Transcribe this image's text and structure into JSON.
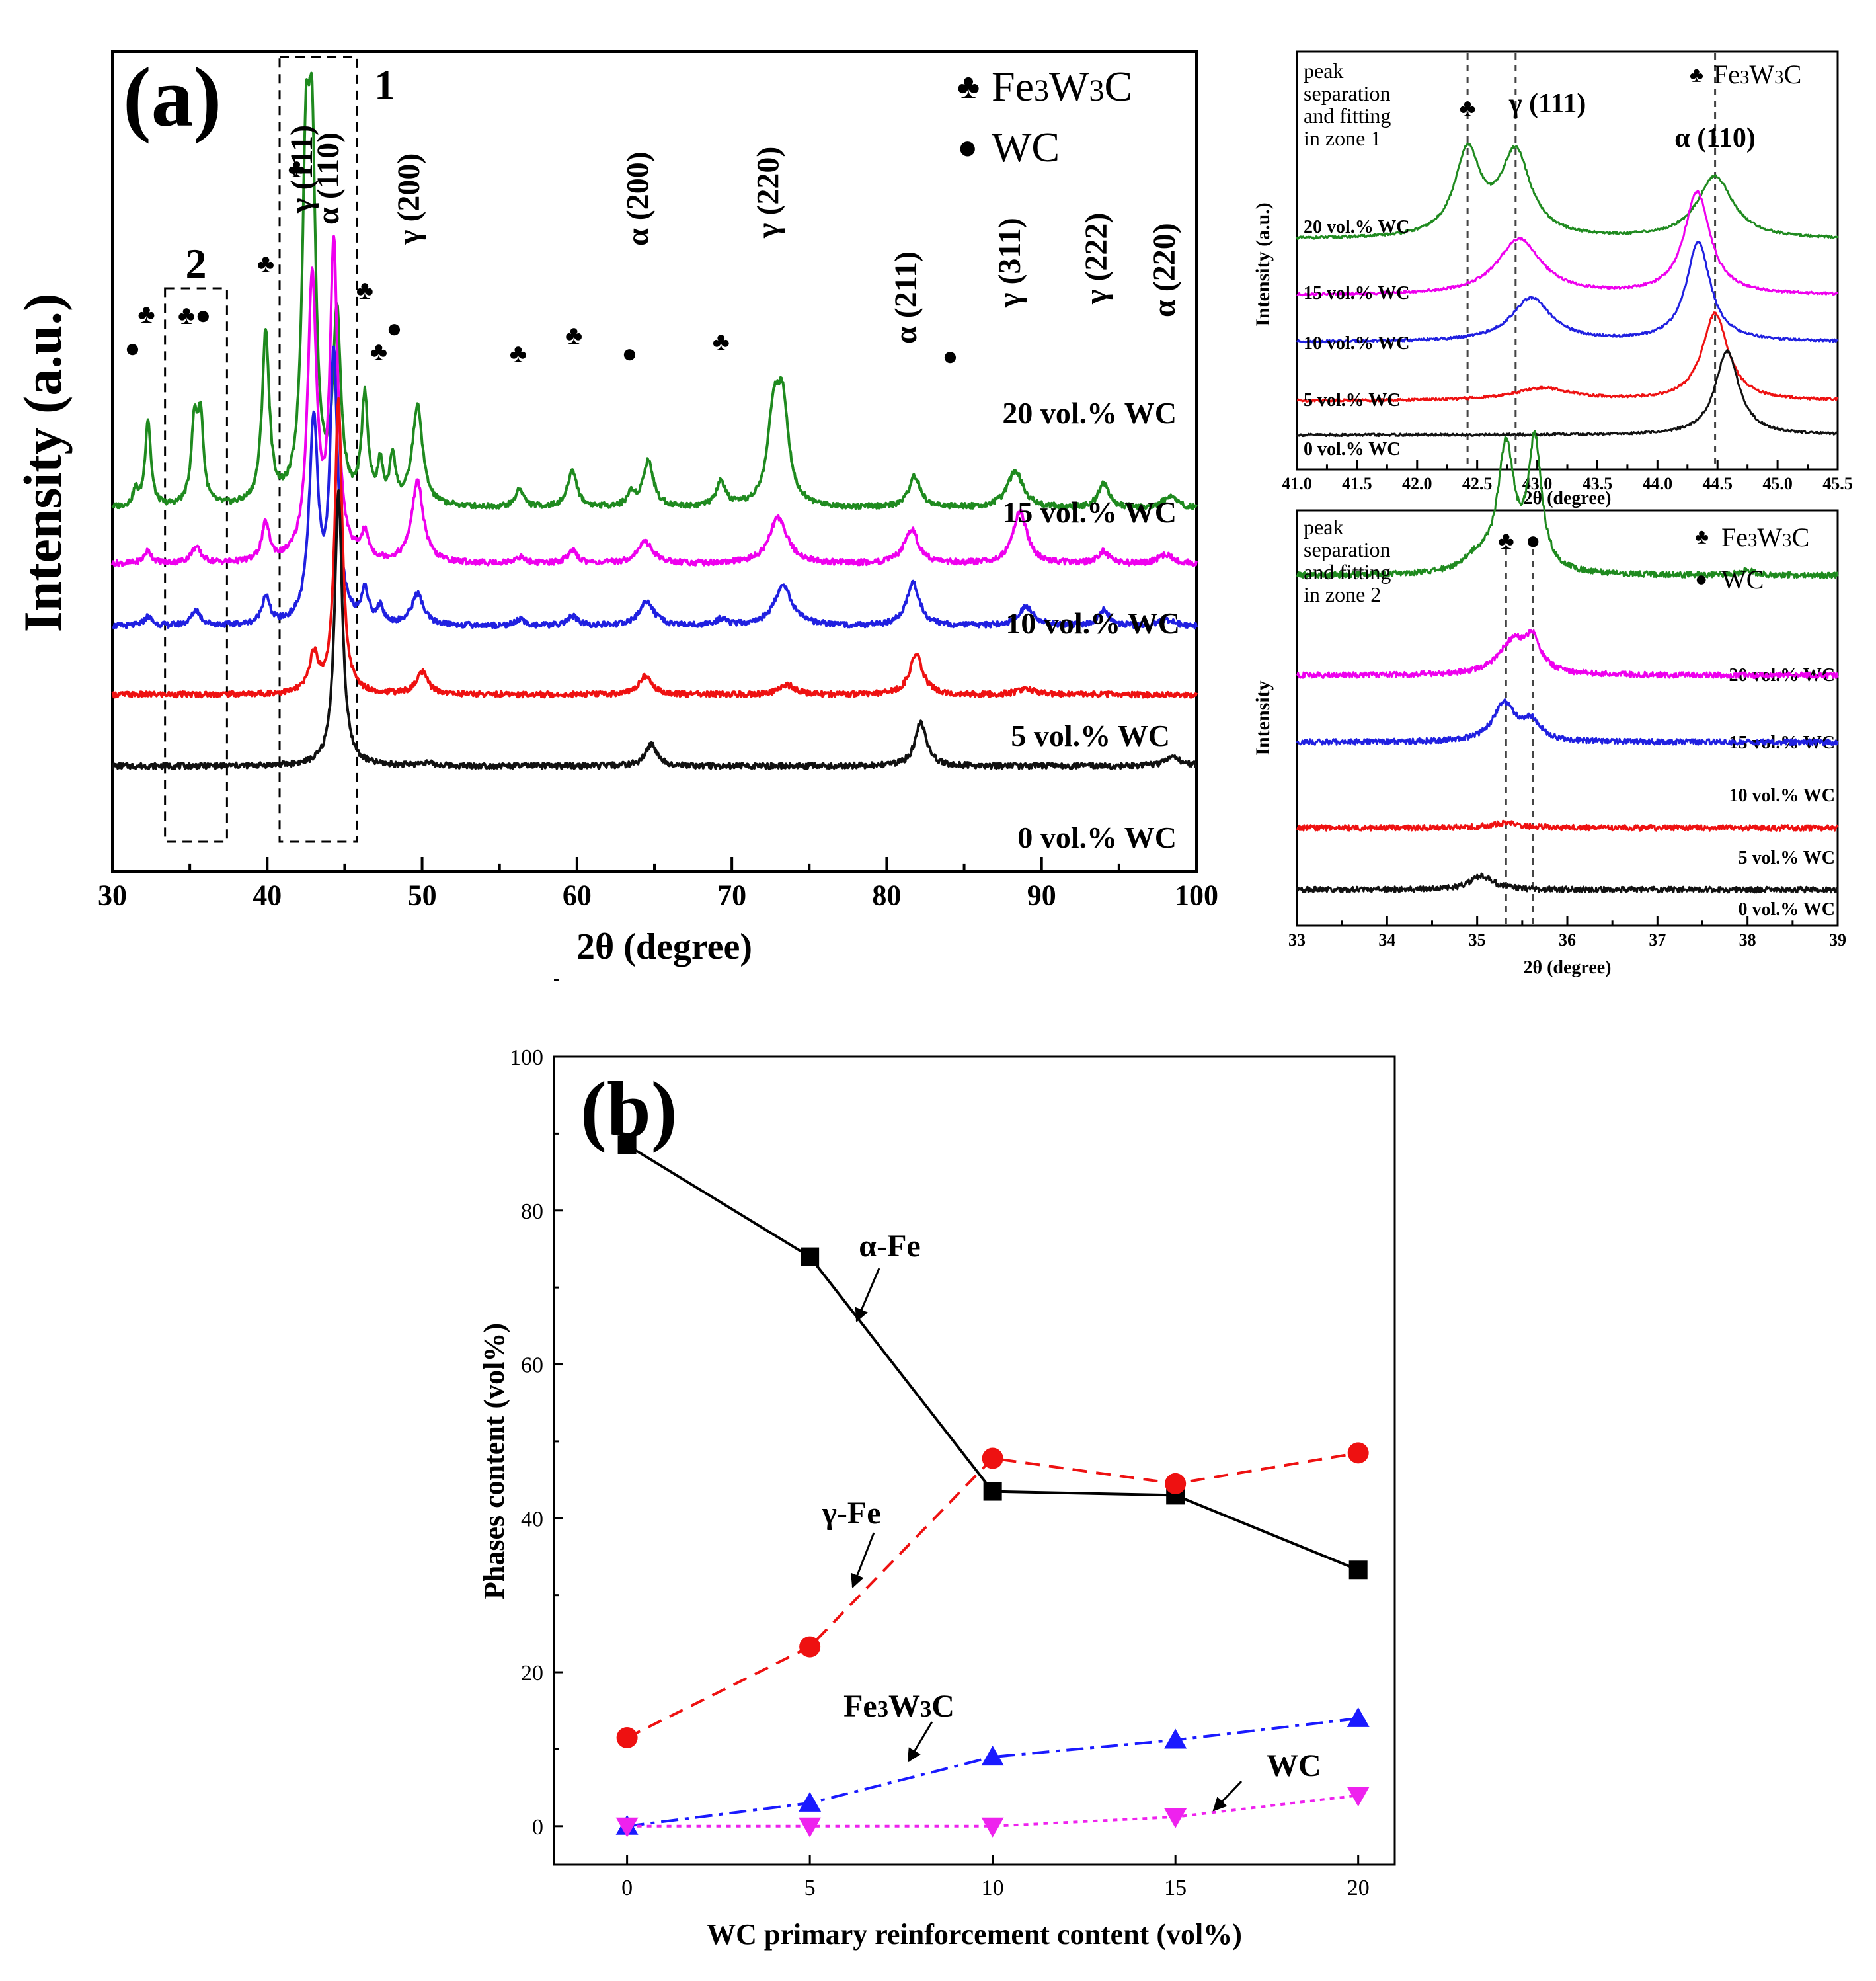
{
  "chart_data": [
    {
      "id": "a",
      "type": "line",
      "panel_label": "(a)",
      "xlabel": "2θ (degree)",
      "ylabel": "Intensity (a.u.)",
      "xlim": [
        30,
        100
      ],
      "xticks": [
        "30",
        "40",
        "50",
        "60",
        "70",
        "80",
        "90",
        "100"
      ],
      "legend": [
        {
          "symbol": "♣",
          "label": "Fe3W3C"
        },
        {
          "symbol": "●",
          "label": "WC"
        }
      ],
      "zones": [
        {
          "label": "1",
          "x_range": [
            40.8,
            45.8
          ]
        },
        {
          "label": "2",
          "x_range": [
            33.4,
            37.4
          ]
        }
      ],
      "series": [
        {
          "name": "20 vol.% WC",
          "color": "#1f8a1f",
          "baseline": 0.62,
          "peaks": [
            [
              31.5,
              0.05,
              0.2
            ],
            [
              32.3,
              0.28,
              0.22
            ],
            [
              35.3,
              0.26,
              0.25
            ],
            [
              35.7,
              0.26,
              0.22
            ],
            [
              39.9,
              0.55,
              0.28
            ],
            [
              42.5,
              1.0,
              0.3
            ],
            [
              42.9,
              0.98,
              0.28
            ],
            [
              44.5,
              0.6,
              0.3
            ],
            [
              46.3,
              0.34,
              0.25
            ],
            [
              47.3,
              0.12,
              0.2
            ],
            [
              48.1,
              0.15,
              0.22
            ],
            [
              49.7,
              0.32,
              0.4
            ],
            [
              56.3,
              0.06,
              0.3
            ],
            [
              59.7,
              0.12,
              0.35
            ],
            [
              63.5,
              0.04,
              0.3
            ],
            [
              64.6,
              0.15,
              0.4
            ],
            [
              69.3,
              0.08,
              0.35
            ],
            [
              72.7,
              0.28,
              0.45
            ],
            [
              73.3,
              0.3,
              0.45
            ],
            [
              81.8,
              0.1,
              0.45
            ],
            [
              88.3,
              0.12,
              0.6
            ],
            [
              94.0,
              0.08,
              0.4
            ],
            [
              98.3,
              0.04,
              0.5
            ]
          ]
        },
        {
          "name": "15 vol.% WC",
          "color": "#ee00ee",
          "baseline": 0.44,
          "peaks": [
            [
              32.3,
              0.04,
              0.3
            ],
            [
              35.4,
              0.05,
              0.4
            ],
            [
              39.9,
              0.12,
              0.3
            ],
            [
              42.9,
              0.9,
              0.35
            ],
            [
              44.3,
              1.0,
              0.3
            ],
            [
              46.3,
              0.08,
              0.3
            ],
            [
              49.7,
              0.26,
              0.45
            ],
            [
              56.3,
              0.02,
              0.4
            ],
            [
              59.7,
              0.04,
              0.4
            ],
            [
              64.4,
              0.07,
              0.6
            ],
            [
              73.0,
              0.15,
              0.7
            ],
            [
              81.6,
              0.11,
              0.55
            ],
            [
              88.6,
              0.17,
              0.55
            ],
            [
              94.0,
              0.04,
              0.4
            ],
            [
              98.0,
              0.03,
              0.6
            ]
          ]
        },
        {
          "name": "10 vol.% WC",
          "color": "#2020e0",
          "baseline": 0.24,
          "peaks": [
            [
              32.3,
              0.03,
              0.3
            ],
            [
              35.4,
              0.05,
              0.35
            ],
            [
              39.9,
              0.09,
              0.3
            ],
            [
              43.0,
              0.64,
              0.35
            ],
            [
              44.3,
              0.86,
              0.3
            ],
            [
              46.3,
              0.1,
              0.3
            ],
            [
              47.3,
              0.05,
              0.25
            ],
            [
              49.7,
              0.1,
              0.45
            ],
            [
              56.3,
              0.02,
              0.35
            ],
            [
              59.7,
              0.03,
              0.4
            ],
            [
              64.5,
              0.08,
              0.55
            ],
            [
              69.3,
              0.02,
              0.4
            ],
            [
              73.3,
              0.13,
              0.7
            ],
            [
              81.7,
              0.14,
              0.5
            ],
            [
              89.0,
              0.06,
              0.6
            ],
            [
              94.0,
              0.05,
              0.45
            ],
            [
              98.0,
              0.02,
              0.6
            ]
          ]
        },
        {
          "name": "5 vol.% WC",
          "color": "#ee1111",
          "baseline": 0.02,
          "peaks": [
            [
              43.0,
              0.12,
              0.35
            ],
            [
              44.6,
              0.95,
              0.28
            ],
            [
              50.0,
              0.07,
              0.45
            ],
            [
              64.4,
              0.06,
              0.5
            ],
            [
              73.6,
              0.03,
              0.6
            ],
            [
              81.9,
              0.13,
              0.5
            ],
            [
              89.0,
              0.02,
              0.6
            ]
          ]
        },
        {
          "name": "0 vol.% WC",
          "color": "#111111",
          "baseline": -0.21,
          "peaks": [
            [
              44.6,
              0.88,
              0.3
            ],
            [
              50.2,
              0.01,
              0.5
            ],
            [
              64.8,
              0.07,
              0.45
            ],
            [
              82.2,
              0.14,
              0.45
            ],
            [
              98.5,
              0.03,
              0.6
            ]
          ]
        }
      ],
      "annotations": [
        {
          "text": "●",
          "x": 31.3
        },
        {
          "text": "♣",
          "x": 32.2
        },
        {
          "text": "♣●",
          "x": 35.3
        },
        {
          "text": "♣",
          "x": 39.9
        },
        {
          "text": "♣",
          "x": 41.9
        },
        {
          "text": "γ (111)",
          "x": 42.9
        },
        {
          "text": "α (110)",
          "x": 44.6
        },
        {
          "text": "♣",
          "x": 46.3
        },
        {
          "text": "♣",
          "x": 47.2
        },
        {
          "text": "●",
          "x": 48.2
        },
        {
          "text": "γ (200)",
          "x": 49.8
        },
        {
          "text": "♣",
          "x": 56.2
        },
        {
          "text": "♣",
          "x": 59.8
        },
        {
          "text": "●",
          "x": 63.4
        },
        {
          "text": "α (200)",
          "x": 64.6
        },
        {
          "text": "♣",
          "x": 69.3
        },
        {
          "text": "γ (220)",
          "x": 73.0
        },
        {
          "text": "α (211)",
          "x": 81.9
        },
        {
          "text": "●",
          "x": 84.1
        },
        {
          "text": "γ (311)",
          "x": 88.6
        },
        {
          "text": "γ (222)",
          "x": 94.2
        },
        {
          "text": "α (220)",
          "x": 98.6
        }
      ]
    },
    {
      "id": "inset1",
      "type": "line",
      "title": "peak separation and fitting in zone 1",
      "xlabel": "2θ (degree)",
      "ylabel": "Intensity (a.u.)",
      "xlim": [
        41.0,
        45.5
      ],
      "xticks": [
        "41.0",
        "41.5",
        "42.0",
        "42.5",
        "43.0",
        "43.5",
        "44.0",
        "44.5",
        "45.0",
        "45.5"
      ],
      "legend": [
        {
          "symbol": "♣",
          "label": "Fe3W3C"
        }
      ],
      "dashed_lines_x": [
        42.42,
        42.82,
        44.48
      ],
      "annotations": [
        {
          "text": "♣",
          "x": 42.42
        },
        {
          "text": "γ (111)",
          "x": 42.82
        },
        {
          "text": "α (110)",
          "x": 44.48
        }
      ],
      "series": [
        {
          "name": "20 vol.% WC",
          "color": "#1f8a1f",
          "baseline": 0.63,
          "peaks": [
            [
              42.42,
              0.27,
              0.13
            ],
            [
              42.82,
              0.27,
              0.15
            ],
            [
              44.48,
              0.2,
              0.18
            ]
          ]
        },
        {
          "name": "15 vol.% WC",
          "color": "#ee00ee",
          "baseline": 0.45,
          "peaks": [
            [
              42.85,
              0.18,
              0.22
            ],
            [
              44.33,
              0.33,
              0.13
            ]
          ]
        },
        {
          "name": "10 vol.% WC",
          "color": "#2020e0",
          "baseline": 0.3,
          "peaks": [
            [
              42.95,
              0.14,
              0.2
            ],
            [
              44.34,
              0.32,
              0.12
            ]
          ]
        },
        {
          "name": "5 vol.% WC",
          "color": "#ee1111",
          "baseline": 0.11,
          "peaks": [
            [
              43.05,
              0.04,
              0.3
            ],
            [
              44.48,
              0.28,
              0.13
            ]
          ]
        },
        {
          "name": "0 vol.% WC",
          "color": "#111111",
          "baseline": 0.0,
          "peaks": [
            [
              44.58,
              0.27,
              0.12
            ]
          ]
        }
      ]
    },
    {
      "id": "inset2",
      "type": "line",
      "title": "peak separation and fitting in zone 2",
      "xlabel": "2θ (degree)",
      "ylabel": "Intensity",
      "xlim": [
        33,
        39
      ],
      "xticks": [
        "33",
        "34",
        "35",
        "36",
        "37",
        "38",
        "39"
      ],
      "legend": [
        {
          "symbol": "♣",
          "label": "Fe3W3C"
        },
        {
          "symbol": "●",
          "label": "WC"
        }
      ],
      "dashed_lines_x": [
        35.32,
        35.62
      ],
      "annotations": [
        {
          "text": "♣",
          "x": 35.32
        },
        {
          "text": "●",
          "x": 35.62
        }
      ],
      "series": [
        {
          "name": "20 vol.% WC",
          "color": "#1f8a1f",
          "baseline": 0.68,
          "peaks": [
            [
              35.32,
              0.26,
              0.11
            ],
            [
              35.64,
              0.27,
              0.09
            ],
            [
              35.0,
              0.03,
              0.2
            ],
            [
              38.0,
              0.01,
              0.1
            ]
          ]
        },
        {
          "name": "15 vol.% WC",
          "color": "#ee00ee",
          "baseline": 0.47,
          "peaks": [
            [
              35.4,
              0.07,
              0.2
            ],
            [
              35.62,
              0.06,
              0.1
            ]
          ]
        },
        {
          "name": "10 vol.% WC",
          "color": "#2020e0",
          "baseline": 0.33,
          "peaks": [
            [
              35.3,
              0.08,
              0.15
            ],
            [
              35.6,
              0.04,
              0.12
            ]
          ]
        },
        {
          "name": "5 vol.% WC",
          "color": "#ee1111",
          "baseline": 0.15,
          "peaks": [
            [
              35.3,
              0.01,
              0.2
            ]
          ]
        },
        {
          "name": "0 vol.% WC",
          "color": "#111111",
          "baseline": 0.02,
          "peaks": [
            [
              35.05,
              0.03,
              0.15
            ]
          ]
        }
      ]
    },
    {
      "id": "b",
      "type": "line",
      "panel_label": "(b)",
      "xlabel": "WC primary reinforcement content (vol%)",
      "ylabel": "Phases content (vol%)",
      "xlim": [
        -2,
        21
      ],
      "ylim": [
        -5,
        100
      ],
      "x": [
        0,
        5,
        10,
        15,
        20
      ],
      "xticks": [
        "0",
        "5",
        "10",
        "15",
        "20"
      ],
      "yticks": [
        "0",
        "20",
        "40",
        "60",
        "80",
        "100"
      ],
      "series": [
        {
          "name": "α-Fe",
          "color": "#000000",
          "marker": "square",
          "dash": "",
          "values": [
            88.5,
            74,
            43.5,
            43,
            33.3
          ]
        },
        {
          "name": "γ-Fe",
          "color": "#ee1111",
          "marker": "circle",
          "dash": "22 14",
          "values": [
            11.5,
            23.3,
            47.8,
            44.5,
            48.5
          ]
        },
        {
          "name": "Fe3W3C",
          "color": "#1a1aff",
          "marker": "triangle-up",
          "dash": "26 10 6 10",
          "values": [
            0,
            3,
            9,
            11.2,
            14
          ]
        },
        {
          "name": "WC",
          "color": "#ee22ee",
          "marker": "triangle-down",
          "dash": "7 8",
          "values": [
            0,
            0,
            0,
            1.2,
            4
          ]
        }
      ]
    }
  ]
}
